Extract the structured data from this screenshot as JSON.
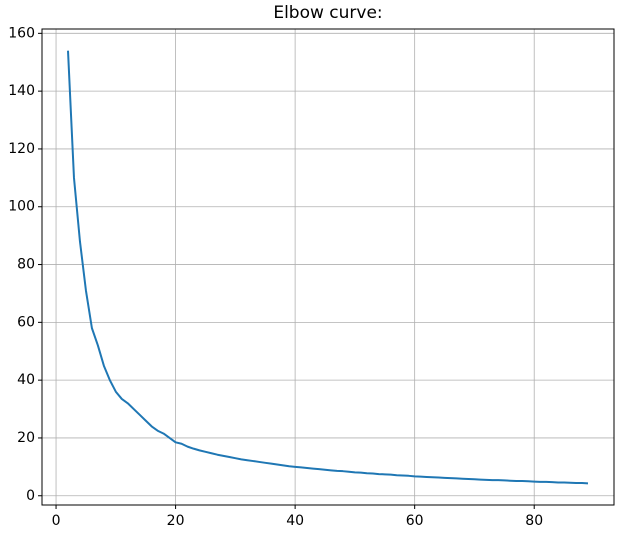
{
  "chart_data": {
    "type": "line",
    "title": "Elbow curve:",
    "x": [
      2,
      3,
      4,
      5,
      6,
      7,
      8,
      9,
      10,
      11,
      12,
      13,
      14,
      15,
      16,
      17,
      18,
      19,
      20,
      21,
      22,
      23,
      24,
      25,
      26,
      27,
      28,
      29,
      30,
      31,
      32,
      33,
      34,
      35,
      36,
      37,
      38,
      39,
      40,
      41,
      42,
      43,
      44,
      45,
      46,
      47,
      48,
      49,
      50,
      51,
      52,
      53,
      54,
      55,
      56,
      57,
      58,
      59,
      60,
      61,
      62,
      63,
      64,
      65,
      66,
      67,
      68,
      69,
      70,
      71,
      72,
      73,
      74,
      75,
      76,
      77,
      78,
      79,
      80,
      81,
      82,
      83,
      84,
      85,
      86,
      87,
      88,
      89
    ],
    "series": [
      {
        "color": "#1f77b4",
        "values": [
          154,
          110,
          88,
          71,
          58,
          52,
          45,
          40,
          36,
          33.5,
          32,
          30,
          28,
          26,
          24,
          22.5,
          21.5,
          20,
          18.5,
          18,
          17,
          16.3,
          15.7,
          15.2,
          14.7,
          14.2,
          13.8,
          13.4,
          13,
          12.6,
          12.3,
          12,
          11.7,
          11.4,
          11.1,
          10.8,
          10.5,
          10.2,
          10,
          9.8,
          9.6,
          9.4,
          9.2,
          9,
          8.8,
          8.6,
          8.5,
          8.3,
          8.1,
          8,
          7.8,
          7.7,
          7.5,
          7.4,
          7.3,
          7.1,
          7,
          6.9,
          6.7,
          6.6,
          6.5,
          6.4,
          6.3,
          6.2,
          6.1,
          6,
          5.9,
          5.8,
          5.7,
          5.6,
          5.5,
          5.4,
          5.4,
          5.3,
          5.2,
          5.1,
          5.1,
          5,
          4.9,
          4.8,
          4.8,
          4.7,
          4.6,
          4.6,
          4.5,
          4.4,
          4.4,
          4.3
        ]
      }
    ],
    "xlim": [
      -2.35,
      93.35
    ],
    "ylim": [
      -3.2,
      161.5
    ],
    "xticks": [
      0,
      20,
      40,
      60,
      80
    ],
    "yticks": [
      0,
      20,
      40,
      60,
      80,
      100,
      120,
      140,
      160
    ],
    "grid": true
  }
}
